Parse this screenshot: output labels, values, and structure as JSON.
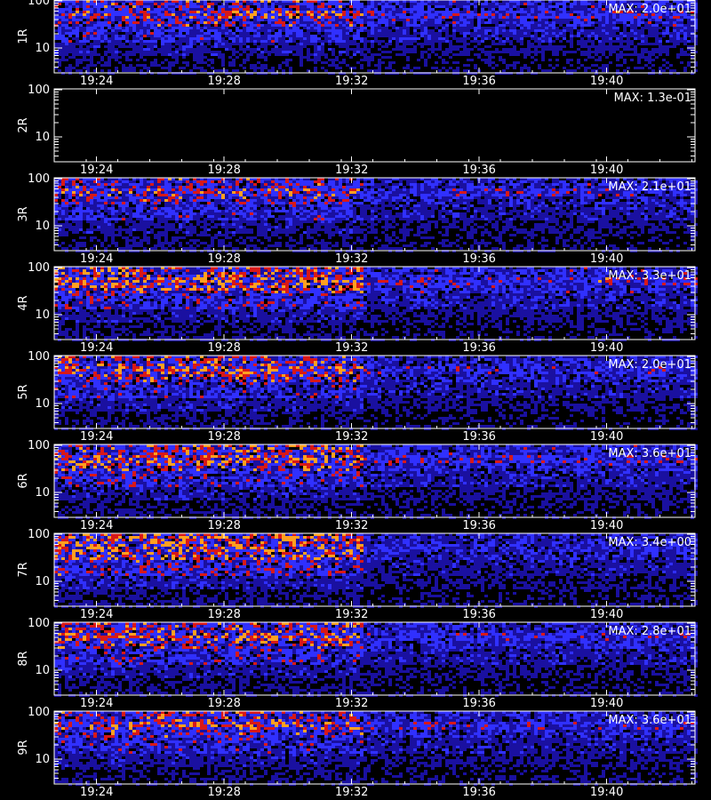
{
  "chart_data": {
    "type": "heatmap",
    "background": "#000000",
    "axis_color": "#ffffff",
    "colors": {
      "low": "#1a10a0",
      "mid": "#3030ff",
      "high": "#d81818",
      "peak": "#ffa020"
    },
    "x_tick_labels": [
      "19:24",
      "19:28",
      "19:32",
      "19:36",
      "19:40"
    ],
    "x_ticks": [
      5.33,
      9.33,
      13.33,
      17.33,
      21.33
    ],
    "x_range": [
      4,
      24.1
    ],
    "regime_change_x": 13.65,
    "y_range": [
      3,
      104
    ],
    "y_scale": "log",
    "y_tick_labels": [
      "10",
      "100"
    ],
    "y_ticks": [
      10,
      100
    ],
    "panels": [
      {
        "label": "1R",
        "max_label": "MAX: 2.0e+01",
        "empty": false,
        "seed": 11,
        "early": 0.72,
        "late": 0.55,
        "band": 0.6
      },
      {
        "label": "2R",
        "max_label": "MAX: 1.3e-01",
        "empty": true,
        "seed": 22,
        "early": 0.0,
        "late": 0.0,
        "band": 0.0
      },
      {
        "label": "3R",
        "max_label": "MAX: 2.1e+01",
        "empty": false,
        "seed": 33,
        "early": 0.7,
        "late": 0.5,
        "band": 0.55
      },
      {
        "label": "4R",
        "max_label": "MAX: 3.3e+01",
        "empty": false,
        "seed": 44,
        "early": 0.85,
        "late": 0.55,
        "band": 0.75
      },
      {
        "label": "5R",
        "max_label": "MAX: 2.0e+01",
        "empty": false,
        "seed": 55,
        "early": 0.8,
        "late": 0.5,
        "band": 0.6
      },
      {
        "label": "6R",
        "max_label": "MAX: 3.6e+01",
        "empty": false,
        "seed": 66,
        "early": 0.85,
        "late": 0.55,
        "band": 0.7
      },
      {
        "label": "7R",
        "max_label": "MAX: 3.4e+00",
        "empty": false,
        "seed": 77,
        "early": 0.95,
        "late": 0.45,
        "band": 0.3
      },
      {
        "label": "8R",
        "max_label": "MAX: 2.8e+01",
        "empty": false,
        "seed": 88,
        "early": 0.8,
        "late": 0.5,
        "band": 0.6
      },
      {
        "label": "9R",
        "max_label": "MAX: 3.6e+01",
        "empty": false,
        "seed": 99,
        "early": 0.75,
        "late": 0.5,
        "band": 0.6
      }
    ]
  }
}
